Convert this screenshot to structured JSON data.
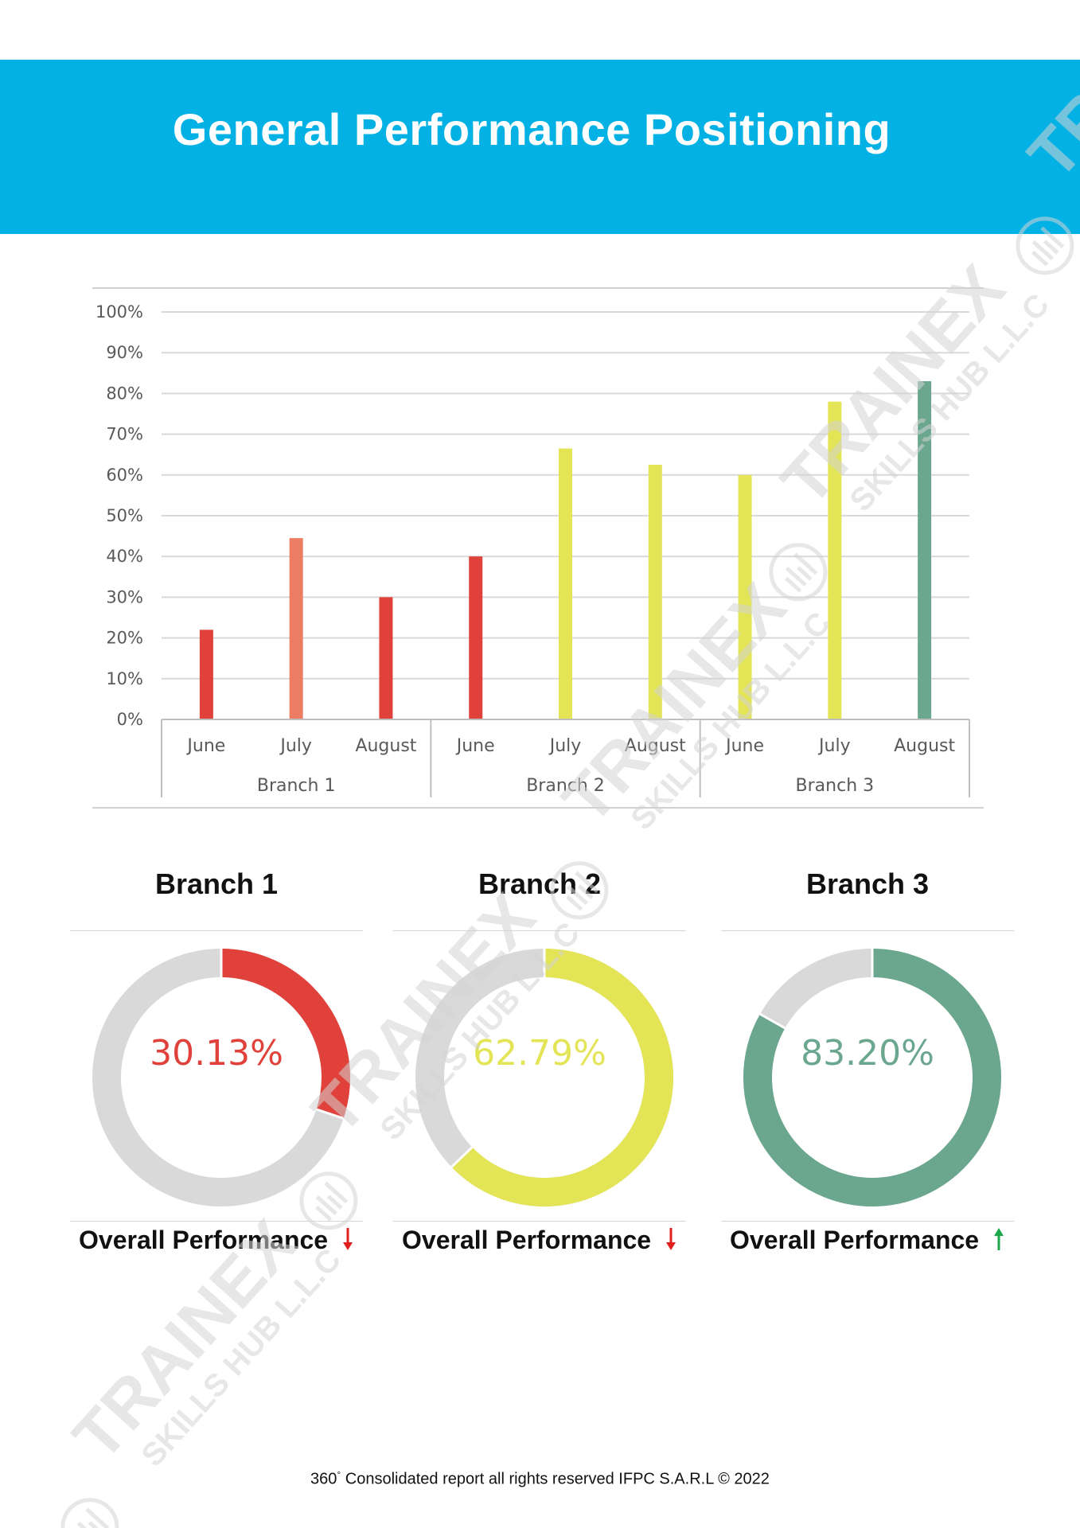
{
  "header": {
    "title": "General Performance Positioning"
  },
  "colors": {
    "header_bg": "#03b1e4",
    "red": "#e0413a",
    "salmon": "#ec7c62",
    "yellow": "#e3e456",
    "green": "#6ba68f",
    "track": "#d9d9d9",
    "trend_down": "#e11f1f",
    "trend_up": "#1aa84a"
  },
  "chart_data": [
    {
      "type": "bar",
      "title": "",
      "ylim": [
        0,
        100
      ],
      "y_ticks": [
        "0%",
        "10%",
        "20%",
        "30%",
        "40%",
        "50%",
        "60%",
        "70%",
        "80%",
        "90%",
        "100%"
      ],
      "grid": true,
      "groups": [
        {
          "name": "Branch 1",
          "categories": [
            "June",
            "July",
            "August"
          ],
          "values": [
            22,
            44.5,
            30
          ],
          "colors": [
            "#e0413a",
            "#ec7c62",
            "#e0413a"
          ]
        },
        {
          "name": "Branch 2",
          "categories": [
            "June",
            "July",
            "August"
          ],
          "values": [
            40,
            66.5,
            62.5
          ],
          "colors": [
            "#e0413a",
            "#e3e456",
            "#e3e456"
          ]
        },
        {
          "name": "Branch 3",
          "categories": [
            "June",
            "July",
            "August"
          ],
          "values": [
            60,
            78,
            83
          ],
          "colors": [
            "#e3e456",
            "#e3e456",
            "#6ba68f"
          ]
        }
      ]
    },
    {
      "type": "pie",
      "title": "Branch 1",
      "value": 30.13,
      "label": "30.13%",
      "color": "#e0413a"
    },
    {
      "type": "pie",
      "title": "Branch 2",
      "value": 62.79,
      "label": "62.79%",
      "color": "#e3e456"
    },
    {
      "type": "pie",
      "title": "Branch 3",
      "value": 83.2,
      "label": "83.20%",
      "color": "#6ba68f"
    }
  ],
  "donuts": [
    {
      "title": "Branch 1",
      "label": "30.13%",
      "footer": "Overall Performance",
      "trend": "down",
      "trend_icon": "arrow-down-icon"
    },
    {
      "title": "Branch 2",
      "label": "62.79%",
      "footer": "Overall Performance",
      "trend": "down",
      "trend_icon": "arrow-down-icon"
    },
    {
      "title": "Branch 3",
      "label": "83.20%",
      "footer": "Overall Performance",
      "trend": "up",
      "trend_icon": "arrow-up-icon"
    }
  ],
  "footer": {
    "pre": "360",
    "degree": "°",
    "text": " Consolidated report all rights reserved IFPC S.A.R.L © 2022"
  },
  "watermark": {
    "line1": "TRAINEX",
    "line2": "SKILLS HUB L.L.C",
    "icon": "trainex-logo-icon"
  }
}
